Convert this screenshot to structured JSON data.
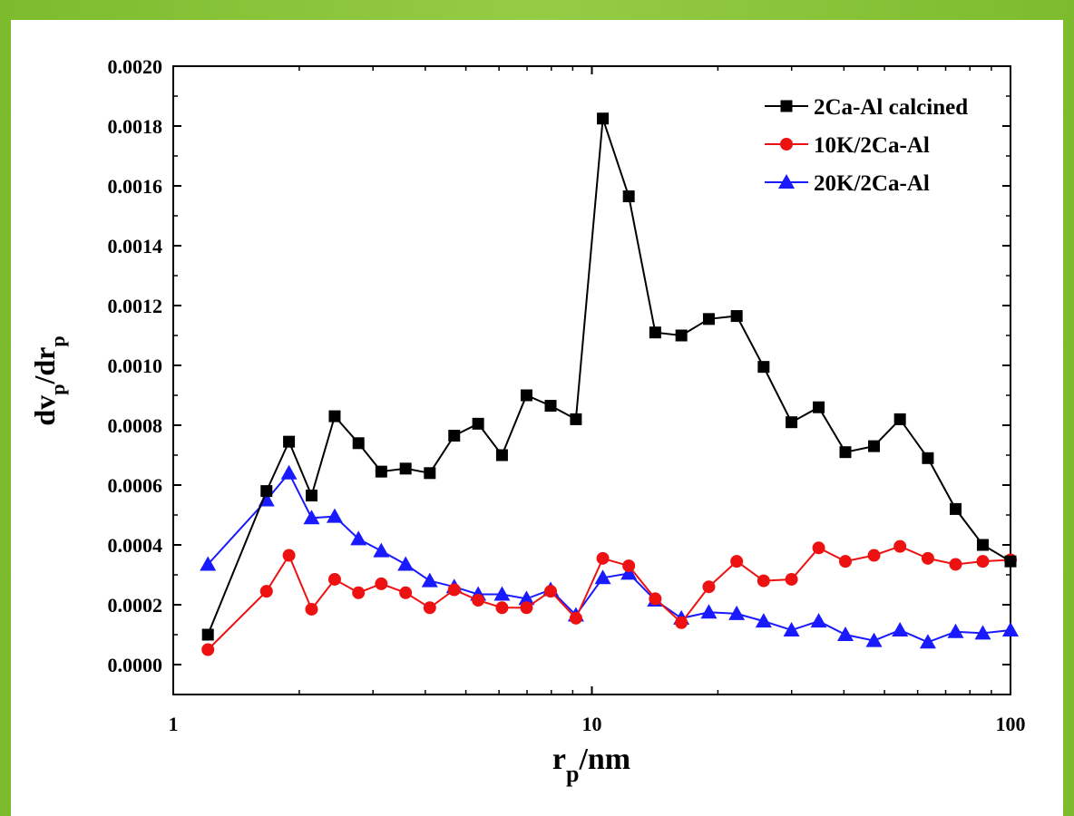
{
  "chart_data": {
    "type": "line",
    "x_scale": "log",
    "xlim": [
      1,
      100
    ],
    "ylim": [
      -0.0001,
      0.002
    ],
    "xlabel": {
      "main": "r",
      "sub": "p",
      "suffix": "/nm"
    },
    "ylabel": {
      "p1": "dv",
      "s1": "p",
      "p2": "/dr",
      "s2": "p"
    },
    "x_ticks": [
      1,
      10,
      100
    ],
    "x_tick_labels": [
      "1",
      "10",
      "100"
    ],
    "y_ticks": [
      0,
      0.0002,
      0.0004,
      0.0006,
      0.0008,
      0.001,
      0.0012,
      0.0014,
      0.0016,
      0.0018,
      0.002
    ],
    "y_tick_labels": [
      "0.0000",
      "0.0002",
      "0.0004",
      "0.0006",
      "0.0008",
      "0.0010",
      "0.0012",
      "0.0014",
      "0.0016",
      "0.0018",
      "0.0020"
    ],
    "grid": false,
    "legend_position": "top-right",
    "series": [
      {
        "name": "2Ca-Al calcined",
        "color": "#000000",
        "marker": "square",
        "x": [
          1.21,
          1.67,
          1.89,
          2.14,
          2.43,
          2.77,
          3.14,
          3.59,
          4.1,
          4.69,
          5.35,
          6.1,
          6.98,
          7.97,
          9.16,
          10.62,
          12.25,
          14.17,
          16.36,
          19.03,
          22.18,
          25.72,
          29.98,
          34.82,
          40.33,
          47.2,
          54.45,
          63.48,
          73.94,
          85.87,
          100.0
        ],
        "y": [
          0.0001,
          0.00058,
          0.000745,
          0.000565,
          0.00083,
          0.00074,
          0.000645,
          0.000655,
          0.00064,
          0.000765,
          0.000805,
          0.0007,
          0.0009,
          0.000865,
          0.00082,
          0.001825,
          0.001565,
          0.00111,
          0.0011,
          0.001155,
          0.001165,
          0.000995,
          0.00081,
          0.00086,
          0.00071,
          0.00073,
          0.00082,
          0.00069,
          0.00052,
          0.0004,
          0.000345
        ]
      },
      {
        "name": "10K/2Ca-Al",
        "color": "#ee1111",
        "marker": "circle",
        "x": [
          1.21,
          1.67,
          1.89,
          2.14,
          2.43,
          2.77,
          3.14,
          3.59,
          4.1,
          4.69,
          5.35,
          6.1,
          6.98,
          7.97,
          9.16,
          10.62,
          12.25,
          14.17,
          16.36,
          19.03,
          22.18,
          25.72,
          29.98,
          34.82,
          40.33,
          47.2,
          54.45,
          63.48,
          73.94,
          85.87,
          100.0
        ],
        "y": [
          5e-05,
          0.000245,
          0.000365,
          0.000185,
          0.000285,
          0.00024,
          0.00027,
          0.00024,
          0.00019,
          0.00025,
          0.000215,
          0.00019,
          0.00019,
          0.000245,
          0.000155,
          0.000355,
          0.00033,
          0.00022,
          0.00014,
          0.00026,
          0.000345,
          0.00028,
          0.000285,
          0.00039,
          0.000345,
          0.000365,
          0.000395,
          0.000355,
          0.000335,
          0.000345,
          0.00035
        ]
      },
      {
        "name": "20K/2Ca-Al",
        "color": "#1a1aff",
        "marker": "triangle",
        "x": [
          1.21,
          1.67,
          1.89,
          2.14,
          2.43,
          2.77,
          3.14,
          3.59,
          4.1,
          4.69,
          5.35,
          6.1,
          6.98,
          7.97,
          9.16,
          10.62,
          12.25,
          14.17,
          16.36,
          19.03,
          22.18,
          25.72,
          29.98,
          34.82,
          40.33,
          47.2,
          54.45,
          63.48,
          73.94,
          85.87,
          100.0
        ],
        "y": [
          0.000335,
          0.00055,
          0.00064,
          0.00049,
          0.000495,
          0.00042,
          0.00038,
          0.000335,
          0.00028,
          0.00026,
          0.000235,
          0.000235,
          0.00022,
          0.00025,
          0.000165,
          0.00029,
          0.000305,
          0.000215,
          0.000155,
          0.000175,
          0.00017,
          0.000145,
          0.000115,
          0.000145,
          0.0001,
          8e-05,
          0.000115,
          7.5e-05,
          0.00011,
          0.000105,
          0.000115
        ]
      }
    ]
  }
}
